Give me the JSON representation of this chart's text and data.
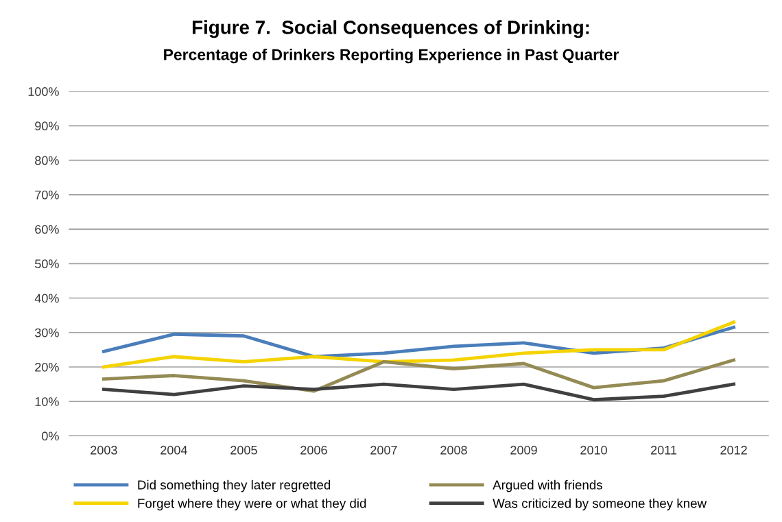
{
  "chart_data": {
    "type": "line",
    "title": "Figure 7.  Social Consequences of Drinking:",
    "subtitle": "Percentage of Drinkers Reporting Experience in Past Quarter",
    "categories": [
      "2003",
      "2004",
      "2005",
      "2006",
      "2007",
      "2008",
      "2009",
      "2010",
      "2011",
      "2012"
    ],
    "series": [
      {
        "name": "Did something they later regretted",
        "color": "#4a7ebb",
        "values": [
          24.5,
          29.5,
          29,
          23,
          24,
          26,
          27,
          24,
          25.5,
          31.5
        ]
      },
      {
        "name": "Forget where they were or what they did",
        "color": "#f5d300",
        "values": [
          20,
          23,
          21.5,
          23,
          21.5,
          22,
          24,
          25,
          25,
          33
        ]
      },
      {
        "name": "Argued with friends",
        "color": "#948a54",
        "values": [
          16.5,
          17.5,
          16,
          13,
          21.5,
          19.5,
          21,
          14,
          16,
          22
        ]
      },
      {
        "name": "Was criticized by someone they knew",
        "color": "#404040",
        "values": [
          13.5,
          12,
          14.5,
          13.5,
          15,
          13.5,
          15,
          10.5,
          11.5,
          15
        ]
      }
    ],
    "ylim": [
      0,
      100
    ],
    "yticks": [
      {
        "value": 0,
        "label": "0%"
      },
      {
        "value": 10,
        "label": "10%"
      },
      {
        "value": 20,
        "label": "20%"
      },
      {
        "value": 30,
        "label": "30%"
      },
      {
        "value": 40,
        "label": "40%"
      },
      {
        "value": 50,
        "label": "50%"
      },
      {
        "value": 60,
        "label": "60%"
      },
      {
        "value": 70,
        "label": "70%"
      },
      {
        "value": 80,
        "label": "80%"
      },
      {
        "value": 90,
        "label": "90%"
      },
      {
        "value": 100,
        "label": "100%"
      }
    ],
    "grid": "y",
    "legend": "bottom",
    "marker": "none",
    "line_style": "solid"
  }
}
